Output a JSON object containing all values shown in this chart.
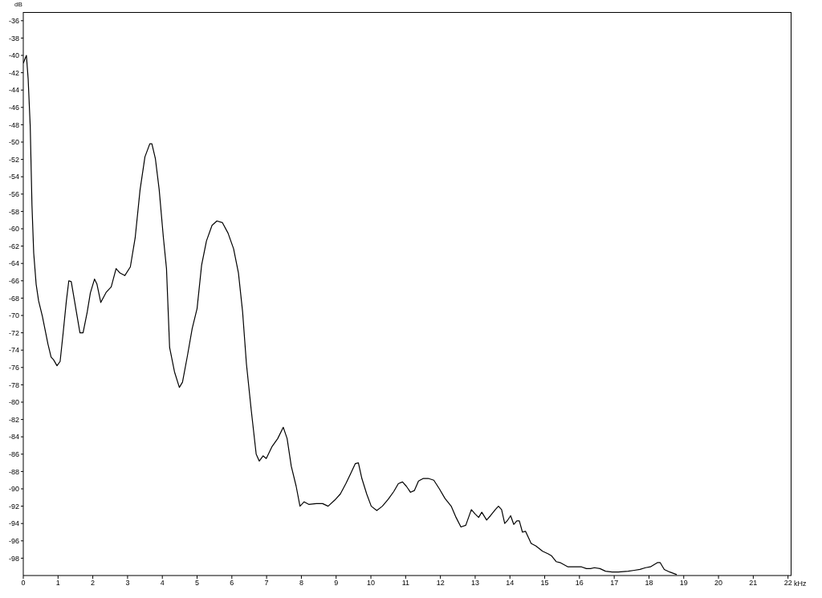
{
  "chart_data": {
    "type": "line",
    "xlabel": "kHz",
    "ylabel": "dB",
    "xlim": [
      0,
      22.1
    ],
    "xticks": [
      0,
      1,
      2,
      3,
      4,
      5,
      6,
      7,
      8,
      9,
      10,
      11,
      12,
      13,
      14,
      15,
      16,
      17,
      18,
      19,
      20,
      21,
      22
    ],
    "ylim": [
      -100,
      -35
    ],
    "yticks": [
      -98,
      -96,
      -94,
      -92,
      -90,
      -88,
      -86,
      -84,
      -82,
      -80,
      -78,
      -76,
      -74,
      -72,
      -70,
      -68,
      -66,
      -64,
      -62,
      -60,
      -58,
      -56,
      -54,
      -52,
      -50,
      -48,
      -46,
      -44,
      -42,
      -40,
      -38,
      -36
    ],
    "grid": false,
    "legend": false,
    "marker": "none",
    "line_style": "solid",
    "series": [
      {
        "color": "#000000",
        "x": [
          0,
          0.09,
          0.14,
          0.2,
          0.25,
          0.3,
          0.37,
          0.44,
          0.55,
          0.71,
          0.8,
          0.87,
          0.97,
          1.06,
          1.15,
          1.24,
          1.31,
          1.38,
          1.49,
          1.63,
          1.72,
          1.84,
          1.93,
          2.05,
          2.12,
          2.23,
          2.39,
          2.53,
          2.67,
          2.78,
          2.92,
          3.08,
          3.22,
          3.36,
          3.5,
          3.64,
          3.7,
          3.8,
          3.91,
          4.03,
          4.12,
          4.21,
          4.35,
          4.49,
          4.58,
          4.72,
          4.86,
          5.0,
          5.13,
          5.27,
          5.43,
          5.57,
          5.73,
          5.89,
          6.05,
          6.19,
          6.31,
          6.42,
          6.56,
          6.7,
          6.79,
          6.9,
          6.99,
          7.16,
          7.32,
          7.48,
          7.59,
          7.71,
          7.85,
          7.96,
          8.08,
          8.22,
          8.43,
          8.61,
          8.77,
          8.96,
          9.12,
          9.28,
          9.41,
          9.55,
          9.64,
          9.74,
          9.88,
          10.01,
          10.17,
          10.33,
          10.5,
          10.66,
          10.79,
          10.91,
          11.02,
          11.14,
          11.25,
          11.37,
          11.51,
          11.65,
          11.81,
          11.97,
          12.13,
          12.31,
          12.45,
          12.59,
          12.73,
          12.89,
          13.0,
          13.1,
          13.19,
          13.33,
          13.44,
          13.58,
          13.67,
          13.76,
          13.85,
          13.92,
          14.02,
          14.11,
          14.2,
          14.27,
          14.36,
          14.45,
          14.61,
          14.75,
          14.94,
          15.1,
          15.19,
          15.33,
          15.44,
          15.67,
          15.9,
          16.06,
          16.2,
          16.32,
          16.43,
          16.59,
          16.75,
          16.94,
          17.12,
          17.4,
          17.58,
          17.74,
          17.9,
          18.04,
          18.25,
          18.32,
          18.44,
          18.6,
          18.8
        ],
        "values": [
          -40.9,
          -40,
          -42.7,
          -48.2,
          -57.3,
          -62.8,
          -66.4,
          -68.3,
          -70.1,
          -73.3,
          -74.8,
          -75.1,
          -75.8,
          -75.3,
          -71.9,
          -68.3,
          -66,
          -66.1,
          -68.7,
          -72,
          -72,
          -69.6,
          -67.4,
          -65.8,
          -66.4,
          -68.5,
          -67.3,
          -66.7,
          -64.6,
          -65.1,
          -65.4,
          -64.4,
          -61,
          -55.5,
          -51.7,
          -50.2,
          -50.2,
          -51.9,
          -55.5,
          -61,
          -64.6,
          -73.7,
          -76.5,
          -78.3,
          -77.7,
          -74.7,
          -71.5,
          -69.2,
          -64.2,
          -61.4,
          -59.6,
          -59.1,
          -59.3,
          -60.5,
          -62.3,
          -65.1,
          -69.6,
          -75.6,
          -81,
          -86,
          -86.8,
          -86.2,
          -86.5,
          -85.1,
          -84.2,
          -82.9,
          -84.2,
          -87.4,
          -89.7,
          -92,
          -91.5,
          -91.8,
          -91.7,
          -91.7,
          -92,
          -91.3,
          -90.6,
          -89.4,
          -88.3,
          -87.1,
          -87,
          -88.8,
          -90.6,
          -92,
          -92.5,
          -92,
          -91.2,
          -90.3,
          -89.4,
          -89.2,
          -89.7,
          -90.4,
          -90.2,
          -89.1,
          -88.8,
          -88.8,
          -89,
          -90,
          -91.1,
          -92,
          -93.3,
          -94.4,
          -94.2,
          -92.4,
          -92.9,
          -93.3,
          -92.7,
          -93.6,
          -93.1,
          -92.4,
          -92,
          -92.4,
          -94,
          -93.7,
          -93.1,
          -94.1,
          -93.7,
          -93.7,
          -95,
          -94.9,
          -96.3,
          -96.6,
          -97.2,
          -97.5,
          -97.7,
          -98.4,
          -98.5,
          -99,
          -99,
          -99,
          -99.2,
          -99.2,
          -99.1,
          -99.2,
          -99.5,
          -99.6,
          -99.6,
          -99.5,
          -99.4,
          -99.3,
          -99.1,
          -99,
          -98.5,
          -98.5,
          -99.3,
          -99.6,
          -99.9
        ]
      }
    ]
  }
}
